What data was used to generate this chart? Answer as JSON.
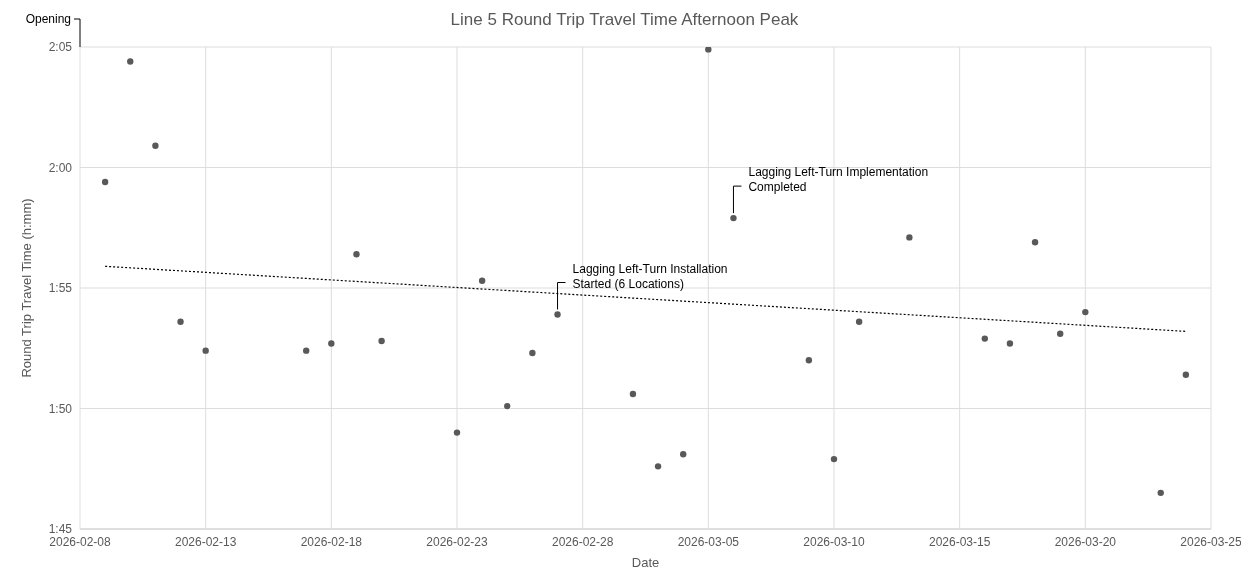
{
  "chart_data": {
    "type": "scatter",
    "title": "Line 5 Round Trip Travel Time Afternoon Peak",
    "xlabel": "Date",
    "ylabel": "Round Trip Travel Time (h:mm)",
    "x": [
      "2026-02-09",
      "2026-02-10",
      "2026-02-11",
      "2026-02-12",
      "2026-02-13",
      "2026-02-17",
      "2026-02-18",
      "2026-02-19",
      "2026-02-20",
      "2026-02-23",
      "2026-02-24",
      "2026-02-25",
      "2026-02-26",
      "2026-02-27",
      "2026-03-02",
      "2026-03-03",
      "2026-03-04",
      "2026-03-05",
      "2026-03-06",
      "2026-03-09",
      "2026-03-10",
      "2026-03-11",
      "2026-03-13",
      "2026-03-16",
      "2026-03-17",
      "2026-03-18",
      "2026-03-19",
      "2026-03-20",
      "2026-03-23",
      "2026-03-24"
    ],
    "series": [
      {
        "color": "#595959",
        "values": [
          119.4,
          124.4,
          120.9,
          113.6,
          112.4,
          112.4,
          112.7,
          116.4,
          112.8,
          109.0,
          115.3,
          110.1,
          112.3,
          113.9,
          110.6,
          107.6,
          108.1,
          124.9,
          117.9,
          112.0,
          107.9,
          113.6,
          117.1,
          112.9,
          112.7,
          116.9,
          113.1,
          114.0,
          106.5,
          111.4
        ]
      },
      {
        "type": "line",
        "color": "#000000",
        "line_style": "dotted",
        "marker": "none",
        "x": [
          "2026-02-09",
          "2026-03-24"
        ],
        "values": [
          115.9,
          113.2
        ]
      }
    ],
    "marker": "circle",
    "grid": true,
    "legend": false,
    "xlim": [
      "2026-02-08",
      "2026-03-25"
    ],
    "xticks": [
      "2026-02-08",
      "2026-02-13",
      "2026-02-18",
      "2026-02-23",
      "2026-02-28",
      "2026-03-05",
      "2026-03-10",
      "2026-03-15",
      "2026-03-20",
      "2026-03-25"
    ],
    "ylim": [
      105,
      125
    ],
    "yticks": [
      {
        "value": 105,
        "label": "1:45"
      },
      {
        "value": 110,
        "label": "1:50"
      },
      {
        "value": 115,
        "label": "1:55"
      },
      {
        "value": 120,
        "label": "2:00"
      },
      {
        "value": 125,
        "label": "2:05"
      }
    ],
    "annotations": [
      "Opening",
      {
        "text": "Lagging Left-Turn Installation Started (6 Locations)",
        "x": "2026-02-27",
        "y": 113.9
      },
      {
        "text": "Lagging Left-Turn Implementation Completed",
        "x": "2026-03-06",
        "y": 117.9
      }
    ]
  }
}
